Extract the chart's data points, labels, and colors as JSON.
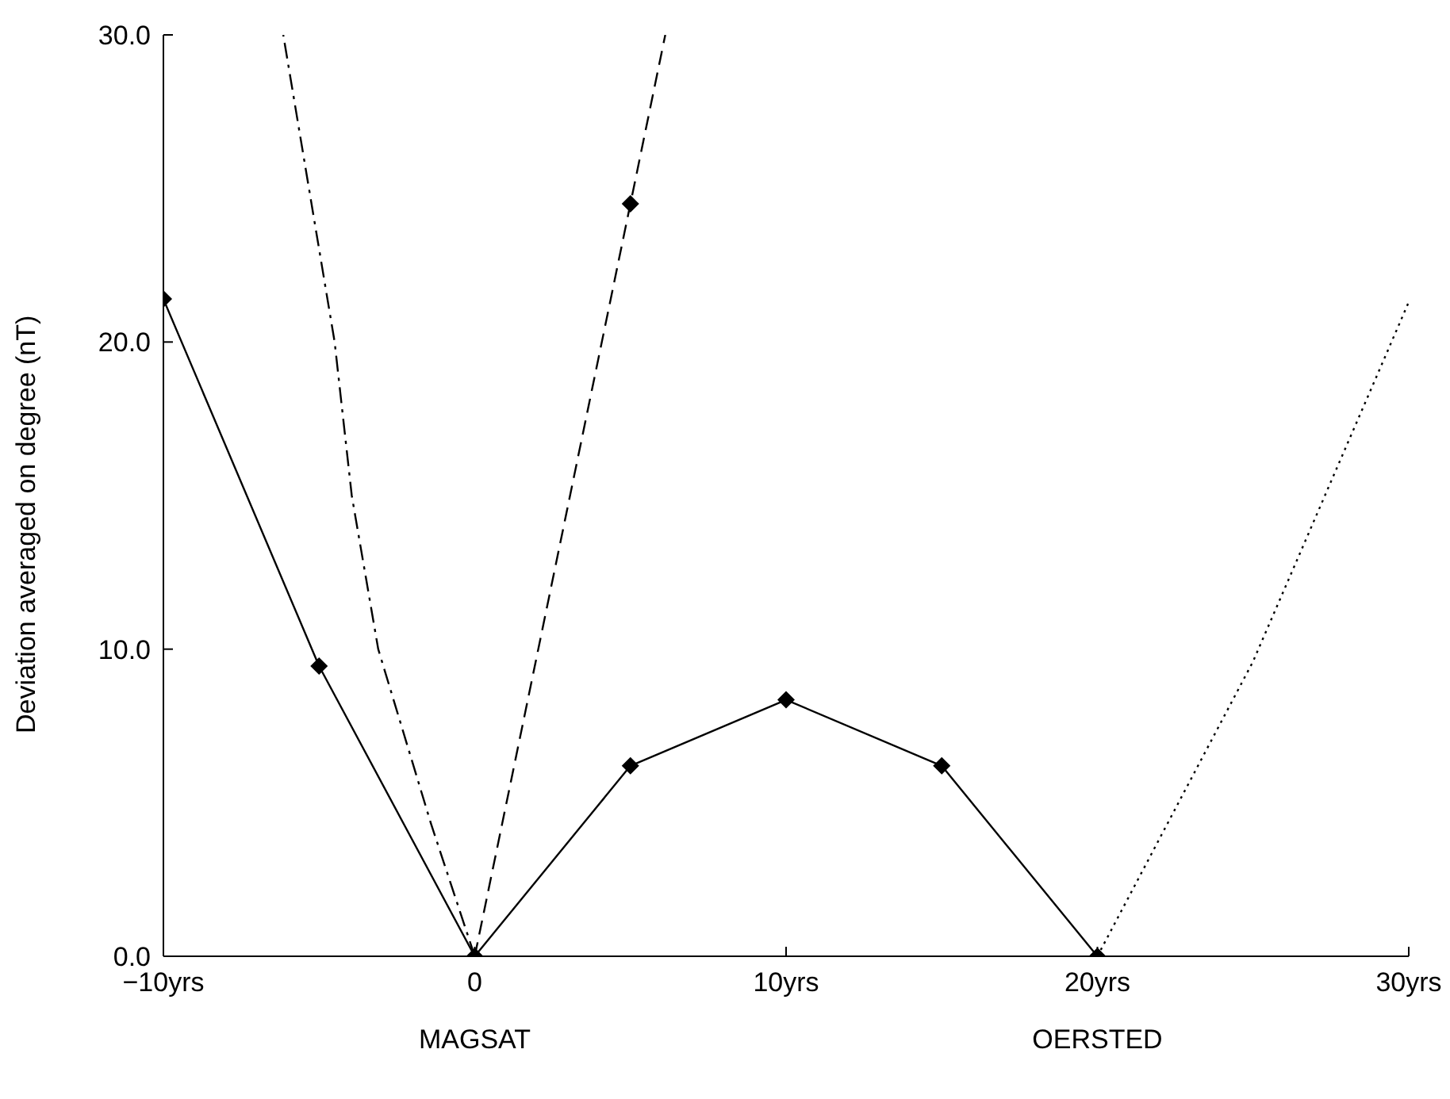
{
  "chart_data": {
    "type": "line",
    "ylabel": "Deviation averaged on degree (nT)",
    "xlim": [
      -10,
      30
    ],
    "ylim": [
      0,
      30
    ],
    "xticks": [
      {
        "value": -10,
        "label": "−10yrs"
      },
      0,
      {
        "value": 10,
        "label": "10yrs"
      },
      {
        "value": 20,
        "label": "20yrs"
      },
      {
        "value": 30,
        "label": "30yrs"
      }
    ],
    "yticks": [
      {
        "value": 0,
        "label": "0.0"
      },
      {
        "value": 10,
        "label": "10.0"
      },
      {
        "value": 20,
        "label": "20.0"
      },
      {
        "value": 30,
        "label": "30.0"
      }
    ],
    "series": [
      {
        "color": "#000000",
        "line_style": "dashdot",
        "marker": "none",
        "x": [
          0,
          -1.4,
          -3.1,
          -3.95,
          -4.5,
          -6.15
        ],
        "values": [
          0,
          4.3,
          10,
          15,
          20,
          30
        ]
      },
      {
        "color": "#000000",
        "line_style": "dashed",
        "marker": "none",
        "x": [
          0,
          5,
          6.12
        ],
        "values": [
          0,
          24.5,
          30
        ]
      },
      {
        "color": "#000000",
        "line_style": "dotted",
        "marker": "none",
        "x": [
          20,
          25,
          30
        ],
        "values": [
          0,
          9.6,
          21.3
        ]
      },
      {
        "color": "#000000",
        "line_style": "solid",
        "marker": "diamond",
        "x": [
          -10,
          -5,
          0,
          5,
          10,
          15,
          20
        ],
        "values": [
          21.4,
          9.45,
          0,
          6.2,
          8.35,
          6.2,
          0
        ]
      },
      {
        "type": "scatter",
        "color": "#000000",
        "marker": "diamond",
        "x": [
          5
        ],
        "values": [
          24.5
        ]
      }
    ],
    "annotations": [
      "MAGSAT",
      "OERSTED"
    ]
  }
}
